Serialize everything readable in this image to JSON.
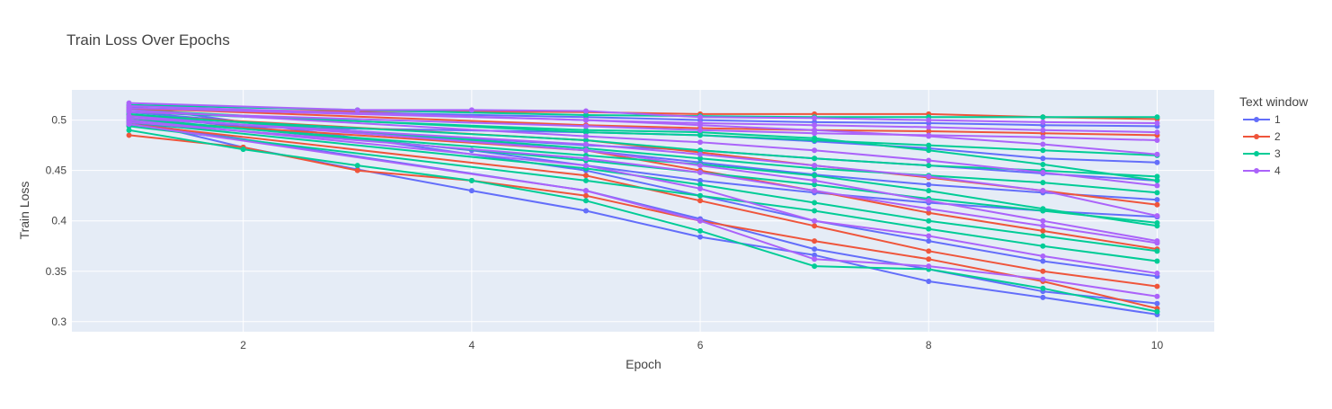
{
  "chart_data": {
    "type": "line",
    "title": "Train Loss Over Epochs",
    "xlabel": "Epoch",
    "ylabel": "Train Loss",
    "xlim": [
      0.5,
      10.5
    ],
    "ylim": [
      0.29,
      0.53
    ],
    "x_ticks": [
      2,
      4,
      6,
      8,
      10
    ],
    "x_tick_labels": [
      "2",
      "4",
      "6",
      "8",
      "10"
    ],
    "y_ticks": [
      0.3,
      0.35,
      0.4,
      0.45,
      0.5
    ],
    "y_tick_labels": [
      "0.3",
      "0.35",
      "0.4",
      "0.45",
      "0.5"
    ],
    "grid": true,
    "plot_background": "#e5ecf6",
    "legend_title": "Text window",
    "legend_position": "right",
    "series": [
      {
        "name": "1",
        "color": "#636efa",
        "x": [
          1,
          5,
          6,
          7,
          8,
          9,
          10
        ],
        "y": [
          0.512,
          0.503,
          0.5,
          0.498,
          0.497,
          0.495,
          0.494
        ]
      },
      {
        "name": "1",
        "color": "#636efa",
        "x": [
          1,
          4,
          5,
          6,
          7,
          8,
          9,
          10
        ],
        "y": [
          0.505,
          0.47,
          0.455,
          0.44,
          0.428,
          0.418,
          0.41,
          0.404
        ]
      },
      {
        "name": "1",
        "color": "#636efa",
        "x": [
          1,
          2,
          3,
          4,
          5,
          6,
          7,
          8,
          9,
          10
        ],
        "y": [
          0.5,
          0.473,
          0.451,
          0.43,
          0.41,
          0.384,
          0.366,
          0.34,
          0.324,
          0.307
        ]
      },
      {
        "name": "1",
        "color": "#636efa",
        "x": [
          1,
          5,
          6,
          7,
          8,
          9,
          10
        ],
        "y": [
          0.508,
          0.47,
          0.458,
          0.446,
          0.436,
          0.428,
          0.421
        ]
      },
      {
        "name": "1",
        "color": "#636efa",
        "x": [
          1,
          5,
          6,
          7,
          8,
          9,
          10
        ],
        "y": [
          0.495,
          0.488,
          0.485,
          0.479,
          0.472,
          0.462,
          0.458
        ]
      },
      {
        "name": "1",
        "color": "#636efa",
        "x": [
          1,
          5,
          6,
          7,
          8,
          9,
          10
        ],
        "y": [
          0.514,
          0.45,
          0.425,
          0.4,
          0.38,
          0.36,
          0.345
        ]
      },
      {
        "name": "1",
        "color": "#636efa",
        "x": [
          1,
          5,
          6,
          7,
          8,
          9,
          10
        ],
        "y": [
          0.502,
          0.475,
          0.47,
          0.462,
          0.455,
          0.447,
          0.44
        ]
      },
      {
        "name": "1",
        "color": "#636efa",
        "x": [
          1,
          5,
          6,
          7,
          8,
          9,
          10
        ],
        "y": [
          0.498,
          0.43,
          0.402,
          0.372,
          0.352,
          0.33,
          0.318
        ]
      },
      {
        "name": "2",
        "color": "#ef553b",
        "x": [
          1,
          2,
          3,
          4,
          5,
          6,
          7,
          8,
          9,
          10
        ],
        "y": [
          0.485,
          0.473,
          0.45,
          0.44,
          0.425,
          0.4,
          0.38,
          0.362,
          0.34,
          0.313
        ]
      },
      {
        "name": "2",
        "color": "#ef553b",
        "x": [
          1,
          5,
          6,
          7,
          8,
          9,
          10
        ],
        "y": [
          0.51,
          0.508,
          0.506,
          0.506,
          0.506,
          0.503,
          0.501
        ]
      },
      {
        "name": "2",
        "color": "#ef553b",
        "x": [
          1,
          5,
          6,
          7,
          8,
          9,
          10
        ],
        "y": [
          0.505,
          0.48,
          0.468,
          0.455,
          0.443,
          0.43,
          0.416
        ]
      },
      {
        "name": "2",
        "color": "#ef553b",
        "x": [
          1,
          5,
          6,
          7,
          8,
          9,
          10
        ],
        "y": [
          0.5,
          0.47,
          0.45,
          0.43,
          0.408,
          0.39,
          0.372
        ]
      },
      {
        "name": "2",
        "color": "#ef553b",
        "x": [
          1,
          5,
          6,
          7,
          8,
          9,
          10
        ],
        "y": [
          0.512,
          0.495,
          0.492,
          0.49,
          0.489,
          0.487,
          0.485
        ]
      },
      {
        "name": "2",
        "color": "#ef553b",
        "x": [
          1,
          5,
          6,
          7,
          8,
          9,
          10
        ],
        "y": [
          0.496,
          0.445,
          0.42,
          0.395,
          0.37,
          0.35,
          0.335
        ]
      },
      {
        "name": "3",
        "color": "#00cc96",
        "x": [
          1,
          2,
          3,
          4,
          5,
          6,
          7,
          8,
          9,
          10
        ],
        "y": [
          0.49,
          0.471,
          0.455,
          0.44,
          0.42,
          0.39,
          0.355,
          0.352,
          0.333,
          0.31
        ]
      },
      {
        "name": "3",
        "color": "#00cc96",
        "x": [
          1,
          3,
          5,
          6,
          7,
          8,
          9,
          10
        ],
        "y": [
          0.515,
          0.51,
          0.505,
          0.504,
          0.503,
          0.503,
          0.503,
          0.503
        ]
      },
      {
        "name": "3",
        "color": "#00cc96",
        "x": [
          1,
          5,
          6,
          7,
          8,
          9,
          10
        ],
        "y": [
          0.51,
          0.488,
          0.485,
          0.48,
          0.475,
          0.47,
          0.465
        ]
      },
      {
        "name": "3",
        "color": "#00cc96",
        "x": [
          1,
          5,
          6,
          7,
          8,
          9,
          10
        ],
        "y": [
          0.506,
          0.472,
          0.462,
          0.452,
          0.445,
          0.438,
          0.428
        ]
      },
      {
        "name": "3",
        "color": "#00cc96",
        "x": [
          1,
          5,
          6,
          7,
          8,
          9,
          10
        ],
        "y": [
          0.502,
          0.46,
          0.448,
          0.436,
          0.422,
          0.41,
          0.398
        ]
      },
      {
        "name": "3",
        "color": "#00cc96",
        "x": [
          1,
          5,
          6,
          7,
          8,
          9,
          10
        ],
        "y": [
          0.498,
          0.452,
          0.436,
          0.418,
          0.4,
          0.385,
          0.37
        ]
      },
      {
        "name": "3",
        "color": "#00cc96",
        "x": [
          1,
          5,
          6,
          7,
          8,
          9,
          10
        ],
        "y": [
          0.504,
          0.48,
          0.47,
          0.462,
          0.455,
          0.45,
          0.444
        ]
      },
      {
        "name": "3",
        "color": "#00cc96",
        "x": [
          1,
          5,
          6,
          7,
          8,
          9,
          10
        ],
        "y": [
          0.494,
          0.44,
          0.425,
          0.41,
          0.392,
          0.375,
          0.36
        ]
      },
      {
        "name": "3",
        "color": "#00cc96",
        "x": [
          1,
          5,
          6,
          7,
          8,
          9,
          10
        ],
        "y": [
          0.508,
          0.49,
          0.488,
          0.482,
          0.47,
          0.456,
          0.44
        ]
      },
      {
        "name": "3",
        "color": "#00cc96",
        "x": [
          1,
          5,
          6,
          7,
          8,
          9,
          10
        ],
        "y": [
          0.5,
          0.465,
          0.456,
          0.445,
          0.43,
          0.412,
          0.395
        ]
      },
      {
        "name": "4",
        "color": "#ab63fa",
        "x": [
          1,
          3,
          4,
          5,
          6,
          7,
          8,
          9,
          10
        ],
        "y": [
          0.517,
          0.51,
          0.51,
          0.509,
          0.503,
          0.502,
          0.5,
          0.498,
          0.497
        ]
      },
      {
        "name": "4",
        "color": "#ab63fa",
        "x": [
          1,
          5,
          6,
          7,
          8,
          9,
          10
        ],
        "y": [
          0.512,
          0.5,
          0.497,
          0.495,
          0.493,
          0.49,
          0.488
        ]
      },
      {
        "name": "4",
        "color": "#ab63fa",
        "x": [
          1,
          5,
          6,
          7,
          8,
          9,
          10
        ],
        "y": [
          0.508,
          0.494,
          0.49,
          0.487,
          0.485,
          0.483,
          0.48
        ]
      },
      {
        "name": "4",
        "color": "#ab63fa",
        "x": [
          1,
          5,
          6,
          7,
          8,
          9,
          10
        ],
        "y": [
          0.504,
          0.47,
          0.455,
          0.44,
          0.42,
          0.4,
          0.38
        ]
      },
      {
        "name": "4",
        "color": "#ab63fa",
        "x": [
          1,
          5,
          6,
          7,
          8,
          9,
          10
        ],
        "y": [
          0.5,
          0.455,
          0.432,
          0.4,
          0.385,
          0.365,
          0.348
        ]
      },
      {
        "name": "4",
        "color": "#ab63fa",
        "x": [
          1,
          5,
          6,
          7,
          8,
          9,
          10
        ],
        "y": [
          0.496,
          0.43,
          0.4,
          0.362,
          0.355,
          0.342,
          0.325
        ]
      },
      {
        "name": "4",
        "color": "#ab63fa",
        "x": [
          1,
          5,
          6,
          7,
          8,
          9,
          10
        ],
        "y": [
          0.51,
          0.484,
          0.478,
          0.47,
          0.46,
          0.448,
          0.435
        ]
      },
      {
        "name": "4",
        "color": "#ab63fa",
        "x": [
          1,
          5,
          6,
          7,
          8,
          9,
          10
        ],
        "y": [
          0.498,
          0.462,
          0.448,
          0.43,
          0.412,
          0.395,
          0.378
        ]
      },
      {
        "name": "4",
        "color": "#ab63fa",
        "x": [
          1,
          5,
          6,
          7,
          8,
          9,
          10
        ],
        "y": [
          0.514,
          0.5,
          0.495,
          0.49,
          0.484,
          0.476,
          0.466
        ]
      },
      {
        "name": "4",
        "color": "#ab63fa",
        "x": [
          1,
          5,
          6,
          7,
          8,
          9,
          10
        ],
        "y": [
          0.502,
          0.476,
          0.466,
          0.455,
          0.444,
          0.43,
          0.405
        ]
      }
    ],
    "legend": [
      {
        "label": "1",
        "color": "#636efa"
      },
      {
        "label": "2",
        "color": "#ef553b"
      },
      {
        "label": "3",
        "color": "#00cc96"
      },
      {
        "label": "4",
        "color": "#ab63fa"
      }
    ]
  }
}
